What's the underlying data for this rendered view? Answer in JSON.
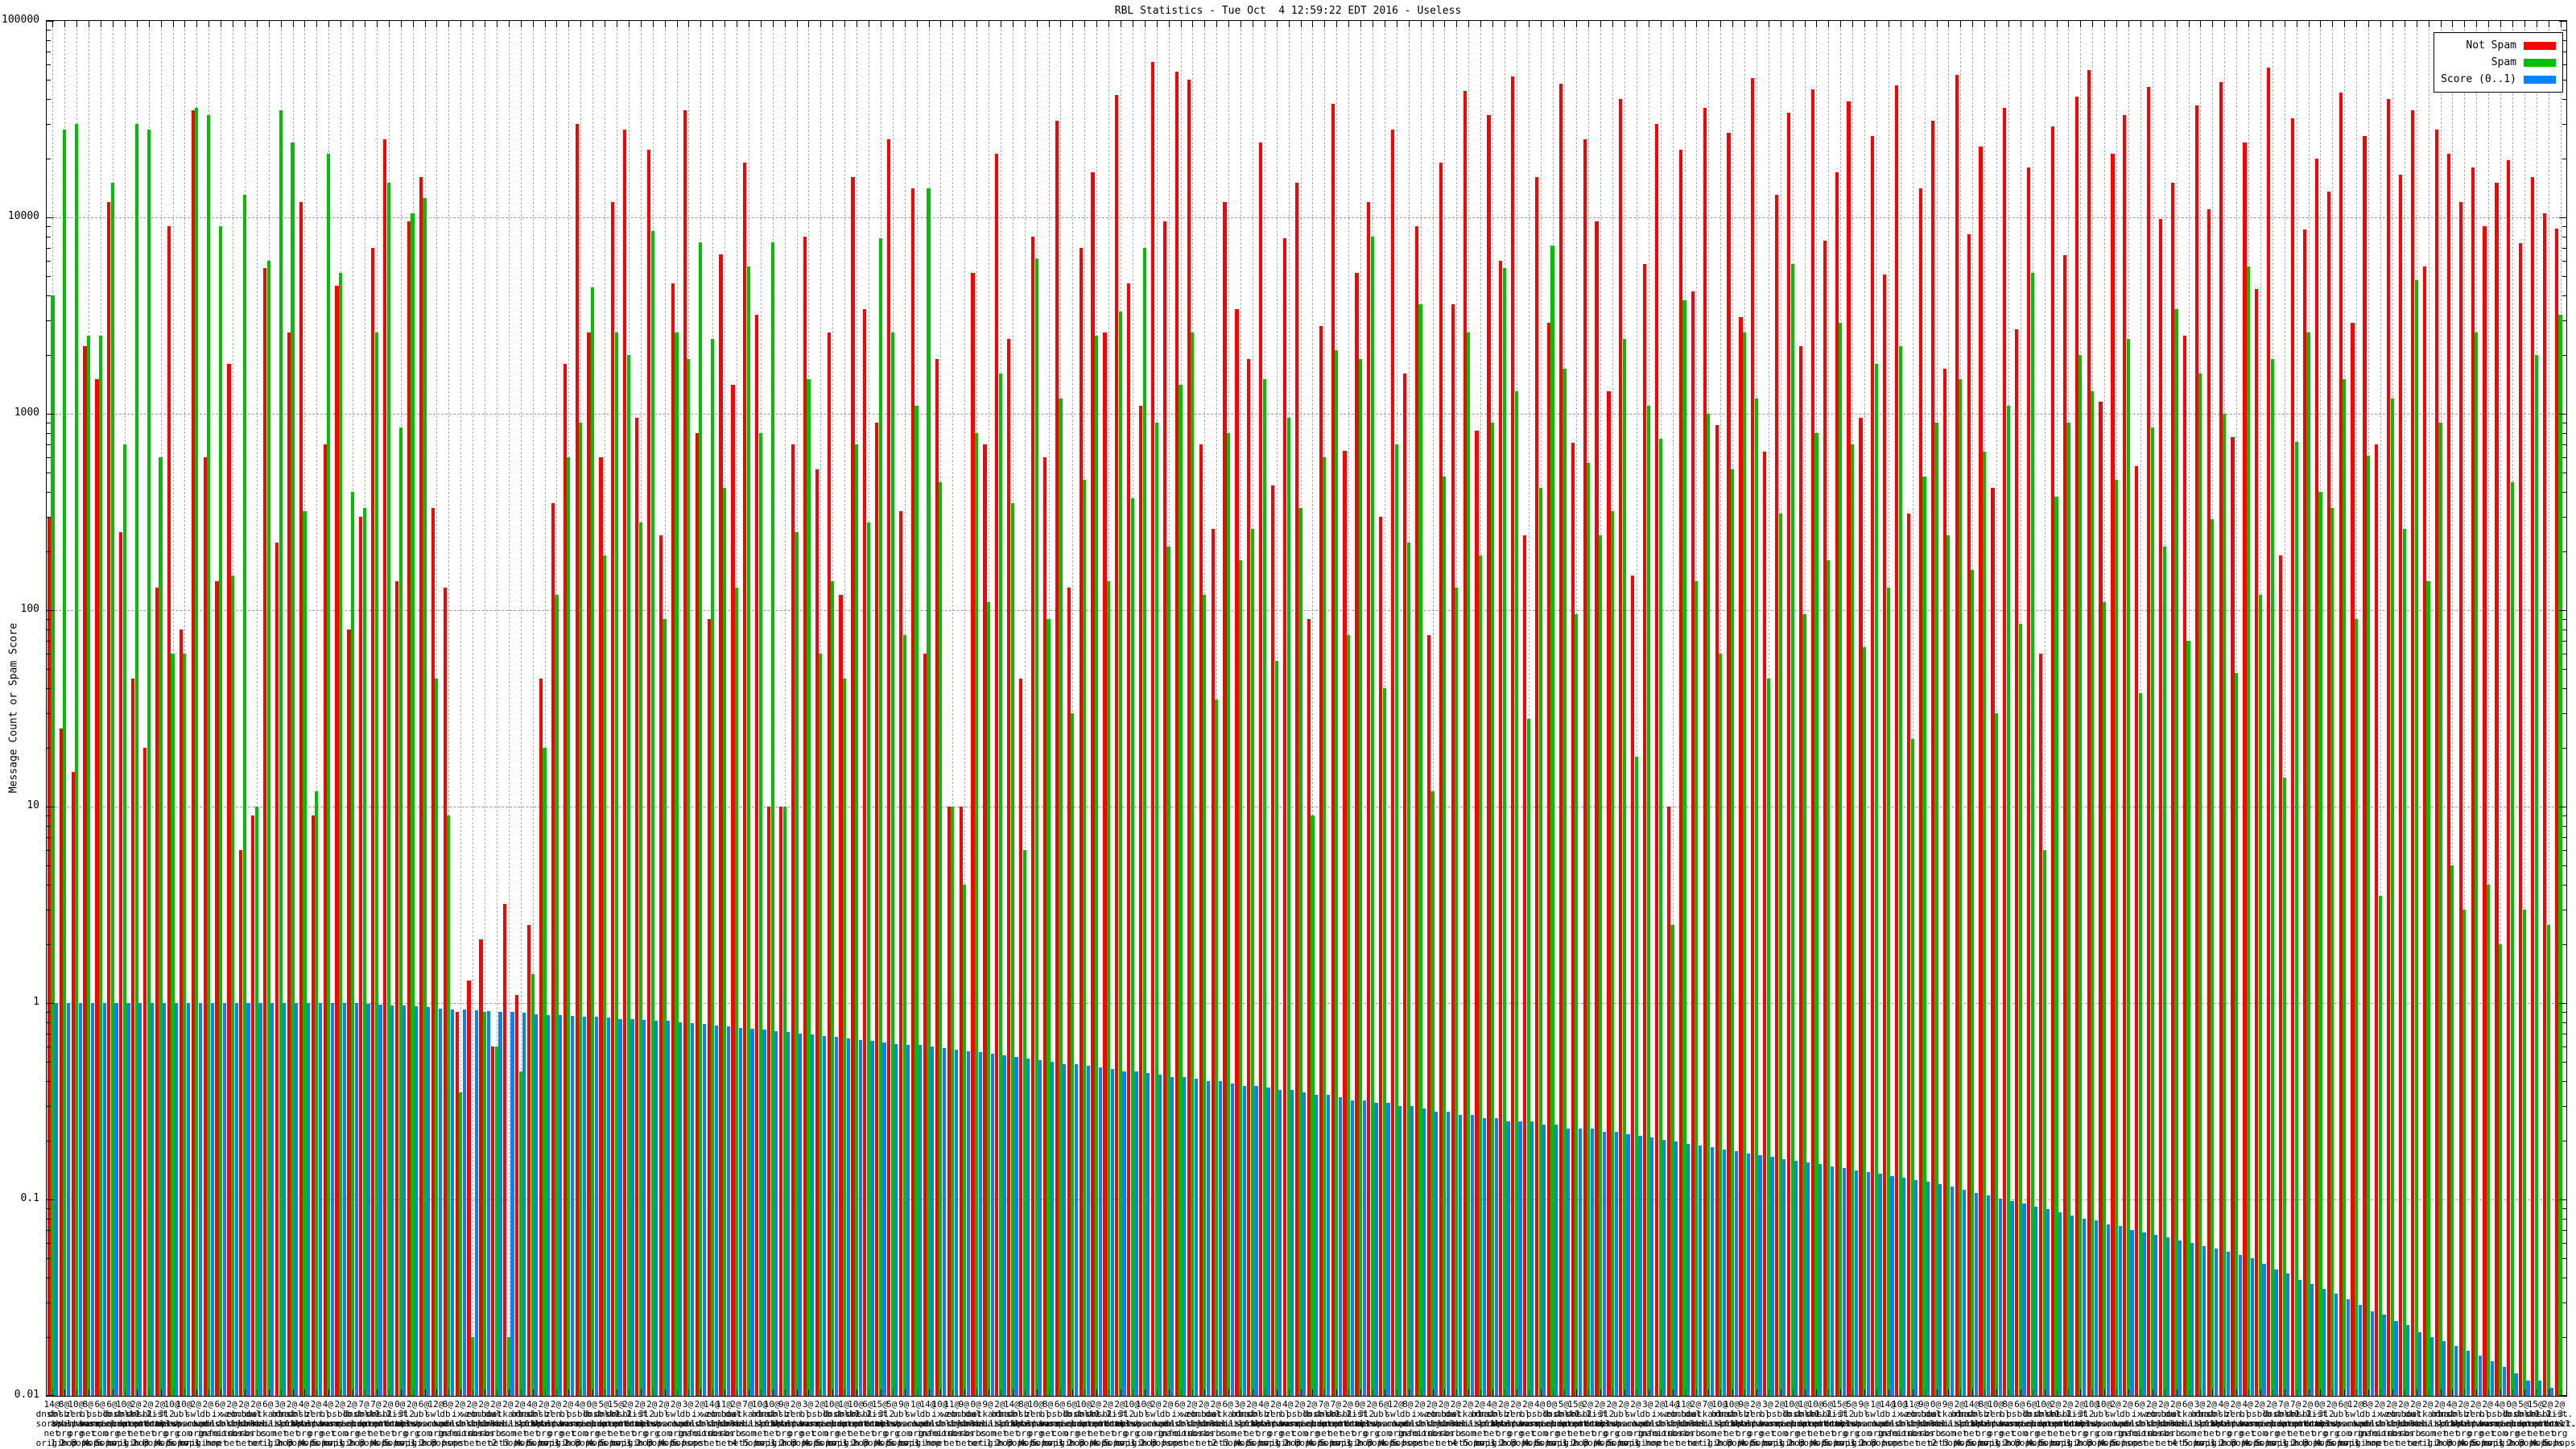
{
  "chart_data": {
    "type": "bar",
    "title": "RBL Statistics - Tue Oct  4 12:59:22 EDT 2016 - Useless",
    "ylabel": "Message Count or Spam Score",
    "yscale": "log",
    "ylim": [
      0.01,
      100000
    ],
    "grid": "dashed, per-decade horizontal and per-group vertical",
    "legend_position": "top-right boxed",
    "yticks": [
      "100000",
      "10000",
      "1000",
      "100",
      "10",
      "1",
      "0.1",
      "0.01"
    ],
    "legend": [
      {
        "label": "Not Spam",
        "color": "#ff0000"
      },
      {
        "label": "Spam",
        "color": "#00c000"
      },
      {
        "label": "Score (0..1)",
        "color": "#0084ff"
      }
    ],
    "series_order": [
      "not_spam",
      "spam",
      "score"
    ],
    "rbl_domains": [
      "dnsbl.sorbs.net",
      "dnsbl.ahbl.org",
      "zen.spamhaus.org",
      "bl.spamcop.net",
      "psbl.surriel.com",
      "b.barracudacentral.org",
      "dnsbl-1.uceprotect.net",
      "dnsbl-2.uceprotect.net",
      "dnsbl-3.uceprotect.net",
      "list.dnswl.org",
      "l2.apews.org",
      "ubl.unsubscore.com",
      "swl.spamhaus.org",
      "db.wpbl.info",
      "ix.dnsbl.manitu.net",
      "web.dnsbl.sorbs.net",
      "zombie.dnsbl.sorbs.net",
      "dul.dnsbl.sorbs.net",
      "hostkarma.junkemailfilter.com",
      "bl.mailspike.net"
    ],
    "hop_suffixes": [
      "origin",
      "1 hop",
      "2 hops",
      "3 hops",
      "4 hops",
      "5 hops"
    ],
    "rows_format": [
      "not_spam_count",
      "spam_count",
      "score_0_to_1",
      "label_score_prefix"
    ],
    "rows": [
      [
        300,
        4000,
        1,
        14
      ],
      [
        25,
        28000,
        1,
        8
      ],
      [
        15,
        30000,
        1,
        10
      ],
      [
        2200,
        2500,
        1,
        8
      ],
      [
        1500,
        2500,
        1,
        6
      ],
      [
        12000,
        15000,
        1,
        6
      ],
      [
        250,
        700,
        1,
        10
      ],
      [
        45,
        30000,
        1,
        2
      ],
      [
        20,
        28000,
        1,
        2
      ],
      [
        130,
        600,
        1,
        2
      ],
      [
        9000,
        60,
        1,
        10
      ],
      [
        80,
        60,
        1,
        10
      ],
      [
        35000,
        36000,
        1,
        2
      ],
      [
        600,
        33000,
        1,
        2
      ],
      [
        140,
        9000,
        1,
        6
      ],
      [
        1800,
        150,
        1,
        2
      ],
      [
        6,
        13000,
        1,
        2
      ],
      [
        9,
        10,
        1,
        2
      ],
      [
        5500,
        6000,
        1,
        6
      ],
      [
        220,
        35000,
        1,
        3
      ],
      [
        2600,
        24000,
        1,
        2
      ],
      [
        12000,
        320,
        1,
        4
      ],
      [
        9,
        12,
        1,
        2
      ],
      [
        700,
        21000,
        1,
        4
      ],
      [
        4500,
        5200,
        1,
        2
      ],
      [
        80,
        400,
        1,
        2
      ],
      [
        300,
        330,
        0.99,
        7
      ],
      [
        7000,
        2600,
        0.98,
        7
      ],
      [
        25000,
        15000,
        0.97,
        2
      ],
      [
        140,
        850,
        0.97,
        0
      ],
      [
        9500,
        10500,
        0.96,
        2
      ],
      [
        16000,
        12500,
        0.95,
        6
      ],
      [
        330,
        45,
        0.94,
        12
      ],
      [
        130,
        9,
        0.93,
        8
      ],
      [
        0.9,
        0.35,
        0.93,
        2
      ],
      [
        1.3,
        0.02,
        0.92,
        2
      ],
      [
        2.1,
        0.9,
        0.91,
        2
      ],
      [
        0.6,
        0.6,
        0.9,
        2
      ],
      [
        3.2,
        0.02,
        0.9,
        2
      ],
      [
        1.1,
        0.45,
        0.89,
        2
      ],
      [
        2.5,
        1.4,
        0.88,
        4
      ],
      [
        45,
        20,
        0.87,
        2
      ],
      [
        350,
        120,
        0.87,
        2
      ],
      [
        1800,
        600,
        0.86,
        2
      ],
      [
        30000,
        900,
        0.85,
        4
      ],
      [
        2600,
        4400,
        0.85,
        0
      ],
      [
        600,
        190,
        0.84,
        5
      ],
      [
        12000,
        2600,
        0.83,
        15
      ],
      [
        28000,
        2000,
        0.83,
        2
      ],
      [
        950,
        280,
        0.82,
        2
      ],
      [
        22000,
        8500,
        0.81,
        2
      ],
      [
        240,
        90,
        0.81,
        2
      ],
      [
        4600,
        2600,
        0.8,
        2
      ],
      [
        35000,
        1900,
        0.79,
        3
      ],
      [
        800,
        7500,
        0.78,
        2
      ],
      [
        90,
        2400,
        0.77,
        14
      ],
      [
        6500,
        420,
        0.76,
        11
      ],
      [
        1400,
        130,
        0.75,
        2
      ],
      [
        19000,
        5600,
        0.74,
        7
      ],
      [
        3200,
        800,
        0.73,
        10
      ],
      [
        10,
        7500,
        0.72,
        10
      ],
      [
        10,
        10,
        0.71,
        9
      ],
      [
        700,
        250,
        0.7,
        2
      ],
      [
        8000,
        1500,
        0.69,
        3
      ],
      [
        520,
        60,
        0.68,
        2
      ],
      [
        2600,
        140,
        0.67,
        10
      ],
      [
        120,
        45,
        0.66,
        1
      ],
      [
        16000,
        700,
        0.65,
        10
      ],
      [
        3400,
        280,
        0.64,
        6
      ],
      [
        900,
        7800,
        0.63,
        15
      ],
      [
        25000,
        2600,
        0.62,
        5
      ],
      [
        320,
        75,
        0.61,
        9
      ],
      [
        14000,
        1100,
        0.61,
        1
      ],
      [
        60,
        14000,
        0.6,
        14
      ],
      [
        1900,
        450,
        0.59,
        10
      ],
      [
        10,
        10,
        0.58,
        11
      ],
      [
        10,
        4,
        0.57,
        9
      ],
      [
        5200,
        800,
        0.56,
        0
      ],
      [
        700,
        110,
        0.55,
        9
      ],
      [
        21000,
        1600,
        0.54,
        2
      ],
      [
        2400,
        350,
        0.53,
        14
      ],
      [
        45,
        6,
        0.52,
        8
      ],
      [
        8000,
        6200,
        0.51,
        10
      ],
      [
        600,
        90,
        0.5,
        8
      ],
      [
        31000,
        1200,
        0.49,
        6
      ],
      [
        130,
        30,
        0.49,
        6
      ],
      [
        7000,
        460,
        0.48,
        10
      ],
      [
        17000,
        2500,
        0.47,
        2
      ],
      [
        2600,
        140,
        0.46,
        2
      ],
      [
        42000,
        3300,
        0.45,
        2
      ],
      [
        4600,
        370,
        0.45,
        10
      ],
      [
        1100,
        7000,
        0.44,
        10
      ],
      [
        62000,
        900,
        0.43,
        2
      ],
      [
        9500,
        210,
        0.42,
        2
      ],
      [
        55000,
        1400,
        0.42,
        6
      ],
      [
        50000,
        2600,
        0.41,
        2
      ],
      [
        700,
        120,
        0.4,
        2
      ],
      [
        260,
        35,
        0.4,
        2
      ],
      [
        12000,
        800,
        0.39,
        6
      ],
      [
        3400,
        180,
        0.38,
        3
      ],
      [
        1900,
        260,
        0.38,
        2
      ],
      [
        24000,
        1500,
        0.37,
        4
      ],
      [
        430,
        55,
        0.36,
        2
      ],
      [
        7800,
        950,
        0.36,
        4
      ],
      [
        15000,
        330,
        0.35,
        2
      ],
      [
        90,
        9,
        0.34,
        2
      ],
      [
        2800,
        600,
        0.34,
        7
      ],
      [
        38000,
        2100,
        0.33,
        7
      ],
      [
        650,
        75,
        0.32,
        2
      ],
      [
        5200,
        1900,
        0.32,
        0
      ],
      [
        12000,
        8000,
        0.31,
        2
      ],
      [
        300,
        40,
        0.31,
        6
      ],
      [
        28000,
        700,
        0.3,
        12
      ],
      [
        1600,
        220,
        0.3,
        8
      ],
      [
        9000,
        3600,
        0.29,
        2
      ],
      [
        75,
        12,
        0.28,
        2
      ],
      [
        19000,
        480,
        0.28,
        2
      ],
      [
        3600,
        130,
        0.27,
        2
      ],
      [
        44000,
        2600,
        0.27,
        2
      ],
      [
        820,
        190,
        0.26,
        2
      ],
      [
        33000,
        900,
        0.26,
        4
      ],
      [
        6000,
        5500,
        0.25,
        2
      ],
      [
        52000,
        1300,
        0.25,
        2
      ],
      [
        240,
        28,
        0.25,
        2
      ],
      [
        16000,
        420,
        0.24,
        4
      ],
      [
        2900,
        7200,
        0.24,
        0
      ],
      [
        48000,
        1700,
        0.23,
        5
      ],
      [
        710,
        95,
        0.23,
        15
      ],
      [
        25000,
        560,
        0.23,
        2
      ],
      [
        9500,
        240,
        0.22,
        2
      ],
      [
        1300,
        320,
        0.22,
        2
      ],
      [
        40000,
        2400,
        0.215,
        2
      ],
      [
        150,
        18,
        0.21,
        2
      ],
      [
        5800,
        1100,
        0.206,
        3
      ],
      [
        30000,
        750,
        0.201,
        2
      ],
      [
        10,
        2.5,
        0.197,
        14
      ],
      [
        22000,
        3800,
        0.192,
        11
      ],
      [
        4200,
        140,
        0.188,
        2
      ],
      [
        36000,
        1000,
        0.184,
        7
      ],
      [
        880,
        60,
        0.18,
        10
      ],
      [
        27000,
        520,
        0.176,
        10
      ],
      [
        3100,
        2600,
        0.172,
        9
      ],
      [
        51000,
        1200,
        0.168,
        2
      ],
      [
        640,
        45,
        0.165,
        3
      ],
      [
        13000,
        310,
        0.161,
        2
      ],
      [
        34000,
        5800,
        0.158,
        10
      ],
      [
        2200,
        95,
        0.154,
        1
      ],
      [
        45000,
        800,
        0.151,
        10
      ],
      [
        7600,
        180,
        0.147,
        6
      ],
      [
        17000,
        2900,
        0.144,
        15
      ],
      [
        39000,
        700,
        0.141,
        5
      ],
      [
        950,
        65,
        0.138,
        9
      ],
      [
        26000,
        1800,
        0.135,
        1
      ],
      [
        5100,
        130,
        0.132,
        14
      ],
      [
        47000,
        2200,
        0.129,
        10
      ],
      [
        310,
        22,
        0.126,
        11
      ],
      [
        14000,
        480,
        0.123,
        9
      ],
      [
        31000,
        900,
        0.12,
        0
      ],
      [
        1700,
        240,
        0.116,
        9
      ],
      [
        53000,
        1500,
        0.112,
        2
      ],
      [
        8200,
        160,
        0.108,
        14
      ],
      [
        23000,
        640,
        0.105,
        8
      ],
      [
        420,
        30,
        0.101,
        10
      ],
      [
        36000,
        1100,
        0.098,
        8
      ],
      [
        2700,
        85,
        0.095,
        6
      ],
      [
        18000,
        5200,
        0.092,
        6
      ],
      [
        60,
        6,
        0.089,
        10
      ],
      [
        29000,
        380,
        0.086,
        2
      ],
      [
        6400,
        900,
        0.083,
        2
      ],
      [
        41000,
        2000,
        0.08,
        2
      ],
      [
        56000,
        1300,
        0.078,
        10
      ],
      [
        1150,
        110,
        0.075,
        10
      ],
      [
        21000,
        460,
        0.073,
        2
      ],
      [
        33000,
        2400,
        0.07,
        2
      ],
      [
        540,
        38,
        0.068,
        6
      ],
      [
        46000,
        850,
        0.066,
        2
      ],
      [
        9800,
        210,
        0.064,
        2
      ],
      [
        15000,
        3400,
        0.062,
        2
      ],
      [
        2500,
        70,
        0.06,
        6
      ],
      [
        37000,
        1600,
        0.058,
        3
      ],
      [
        11000,
        290,
        0.056,
        2
      ],
      [
        49000,
        1000,
        0.054,
        4
      ],
      [
        760,
        48,
        0.052,
        2
      ],
      [
        24000,
        5600,
        0.05,
        4
      ],
      [
        4300,
        120,
        0.047,
        2
      ],
      [
        58000,
        1900,
        0.044,
        2
      ],
      [
        190,
        14,
        0.042,
        7
      ],
      [
        32000,
        720,
        0.039,
        7
      ],
      [
        8700,
        2600,
        0.037,
        2
      ],
      [
        20000,
        400,
        0.035,
        0
      ],
      [
        13500,
        330,
        0.033,
        2
      ],
      [
        43000,
        1500,
        0.031,
        6
      ],
      [
        2900,
        90,
        0.029,
        12
      ],
      [
        26000,
        610,
        0.027,
        8
      ],
      [
        700,
        3.5,
        0.026,
        2
      ],
      [
        40000,
        1200,
        0.024,
        2
      ],
      [
        16500,
        260,
        0.023,
        2
      ],
      [
        35000,
        4800,
        0.021,
        2
      ],
      [
        5600,
        140,
        0.02,
        2
      ],
      [
        28000,
        900,
        0.019,
        2
      ],
      [
        21000,
        5,
        0.018,
        4
      ],
      [
        12000,
        3,
        0.017,
        2
      ],
      [
        18000,
        2600,
        0.016,
        2
      ],
      [
        9000,
        4,
        0.015,
        2
      ],
      [
        15000,
        2,
        0.014,
        4
      ],
      [
        19500,
        450,
        0.013,
        0
      ],
      [
        7400,
        3,
        0.012,
        5
      ],
      [
        16000,
        2000,
        0.012,
        15
      ],
      [
        10500,
        2.5,
        0.011,
        2
      ],
      [
        8800,
        3200,
        0.01,
        2
      ]
    ]
  }
}
